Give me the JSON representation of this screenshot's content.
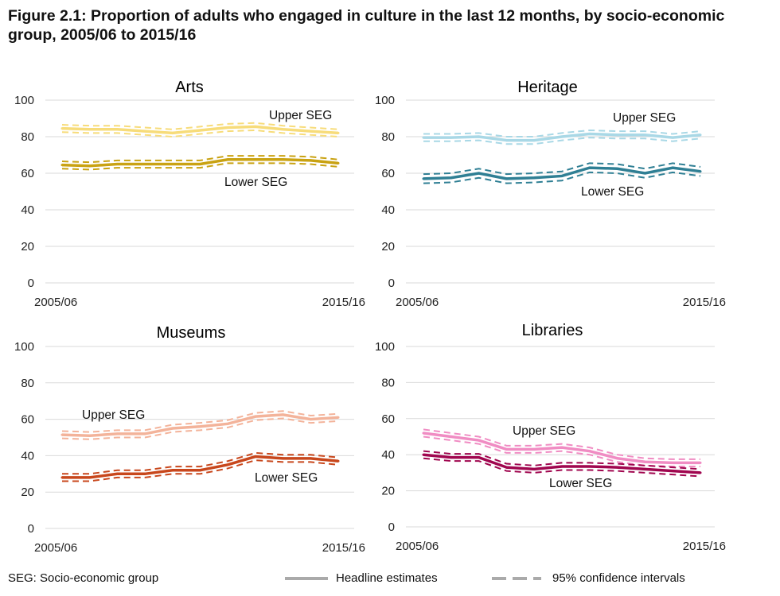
{
  "title": "Figure 2.1: Proportion of adults who engaged in culture in the last 12 months, by socio-economic group, 2005/06 to 2015/16",
  "footer": {
    "note": "SEG: Socio-economic group",
    "legend_headline": "Headline estimates",
    "legend_ci": "95% confidence intervals",
    "legend_color": "#aaaaaa"
  },
  "chart_data": [
    {
      "type": "line",
      "title": "Arts",
      "x": [
        "2005/06",
        "2006/07",
        "2007/08",
        "2008/09",
        "2009/10",
        "2010/11",
        "2011/12",
        "2012/13",
        "2013/14",
        "2014/15",
        "2015/16"
      ],
      "x_tick_labels": [
        "2005/06",
        "2015/16"
      ],
      "ylim": [
        0,
        100
      ],
      "yticks": [
        0,
        20,
        40,
        60,
        80,
        100
      ],
      "grid": true,
      "series": [
        {
          "name": "Upper SEG",
          "color": "#f7dc7a",
          "values": [
            84.5,
            84,
            84,
            83,
            82,
            83.5,
            85,
            85.5,
            84,
            83,
            82
          ],
          "ci": 2
        },
        {
          "name": "Lower SEG",
          "color": "#c9a212",
          "values": [
            64.5,
            64,
            65,
            65,
            65,
            65,
            67.5,
            67.5,
            67.5,
            67,
            65.5
          ],
          "ci": 2
        }
      ]
    },
    {
      "type": "line",
      "title": "Heritage",
      "x": [
        "2005/06",
        "2006/07",
        "2007/08",
        "2008/09",
        "2009/10",
        "2010/11",
        "2011/12",
        "2012/13",
        "2013/14",
        "2014/15",
        "2015/16"
      ],
      "x_tick_labels": [
        "2005/06",
        "2015/16"
      ],
      "ylim": [
        0,
        100
      ],
      "yticks": [
        0,
        20,
        40,
        60,
        80,
        100
      ],
      "grid": true,
      "series": [
        {
          "name": "Upper SEG",
          "color": "#a9d8e6",
          "values": [
            79.5,
            79.5,
            80,
            78,
            78,
            80,
            81.5,
            81,
            81,
            79.5,
            81
          ],
          "ci": 2
        },
        {
          "name": "Lower SEG",
          "color": "#2f7f94",
          "values": [
            57,
            57.5,
            60,
            57,
            57.5,
            58.5,
            63,
            62.5,
            60,
            63,
            61
          ],
          "ci": 2.5
        }
      ]
    },
    {
      "type": "line",
      "title": "Museums",
      "x": [
        "2005/06",
        "2006/07",
        "2007/08",
        "2008/09",
        "2009/10",
        "2010/11",
        "2011/12",
        "2012/13",
        "2013/14",
        "2014/15",
        "2015/16"
      ],
      "x_tick_labels": [
        "2005/06",
        "2015/16"
      ],
      "ylim": [
        0,
        100
      ],
      "yticks": [
        0,
        20,
        40,
        60,
        80,
        100
      ],
      "grid": true,
      "series": [
        {
          "name": "Upper SEG",
          "color": "#f3b39a",
          "values": [
            51.5,
            51,
            52,
            52,
            55,
            56,
            57.5,
            61.5,
            62.5,
            60,
            61
          ],
          "ci": 2
        },
        {
          "name": "Lower SEG",
          "color": "#c8471c",
          "values": [
            28,
            28,
            30,
            30,
            32,
            32,
            35,
            39.5,
            38.5,
            38.5,
            37
          ],
          "ci": 2
        }
      ]
    },
    {
      "type": "line",
      "title": "Libraries",
      "x": [
        "2005/06",
        "2006/07",
        "2007/08",
        "2008/09",
        "2009/10",
        "2010/11",
        "2011/12",
        "2012/13",
        "2013/14",
        "2014/15",
        "2015/16"
      ],
      "x_tick_labels": [
        "2005/06",
        "2015/16"
      ],
      "ylim": [
        0,
        100
      ],
      "yticks": [
        0,
        20,
        40,
        60,
        80,
        100
      ],
      "grid": true,
      "series": [
        {
          "name": "Upper SEG",
          "color": "#f08cc3",
          "values": [
            52,
            50,
            48,
            43,
            43,
            44,
            42,
            38,
            36,
            35.5,
            35.5
          ],
          "ci": 2
        },
        {
          "name": "Lower SEG",
          "color": "#a0064f",
          "values": [
            40,
            38.5,
            38.5,
            33,
            32,
            33.5,
            33.5,
            33,
            32,
            31,
            30
          ],
          "ci": 2
        }
      ]
    }
  ]
}
